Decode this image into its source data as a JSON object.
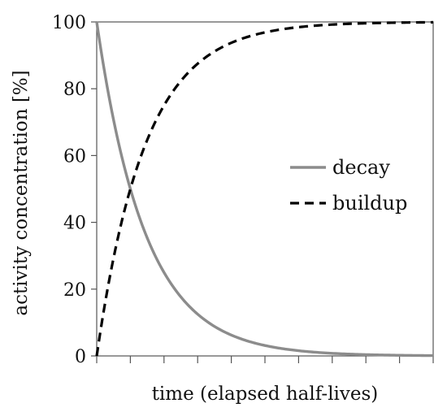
{
  "chart_data": {
    "type": "line",
    "xlabel": "time (elapsed half-lives)",
    "ylabel": "activity concentration [%]",
    "xlim": [
      0,
      10
    ],
    "ylim": [
      0,
      100
    ],
    "x_ticks": [
      0,
      1,
      2,
      3,
      4,
      5,
      6,
      7,
      8,
      9,
      10
    ],
    "y_ticks": [
      0,
      20,
      40,
      60,
      80,
      100
    ],
    "y_tick_labels": [
      "0",
      "20",
      "40",
      "60",
      "80",
      "100"
    ],
    "grid": false,
    "legend_position": "right-middle",
    "x": [
      0,
      0.5,
      1,
      1.5,
      2,
      2.5,
      3,
      3.5,
      4,
      4.5,
      5,
      5.5,
      6,
      6.5,
      7,
      7.5,
      8,
      8.5,
      9,
      9.5,
      10
    ],
    "series": [
      {
        "name": "decay",
        "style": "solid",
        "color": "#8c8c8c",
        "values": [
          100,
          70.7,
          50,
          35.4,
          25,
          17.7,
          12.5,
          8.8,
          6.3,
          4.4,
          3.1,
          2.2,
          1.6,
          1.1,
          0.8,
          0.6,
          0.4,
          0.3,
          0.2,
          0.1,
          0.1
        ]
      },
      {
        "name": "buildup",
        "style": "dashed",
        "color": "#000000",
        "values": [
          0,
          29.3,
          50,
          64.6,
          75,
          82.3,
          87.5,
          91.2,
          93.8,
          95.6,
          96.9,
          97.8,
          98.4,
          98.9,
          99.2,
          99.4,
          99.6,
          99.7,
          99.8,
          99.9,
          99.9
        ]
      }
    ]
  }
}
